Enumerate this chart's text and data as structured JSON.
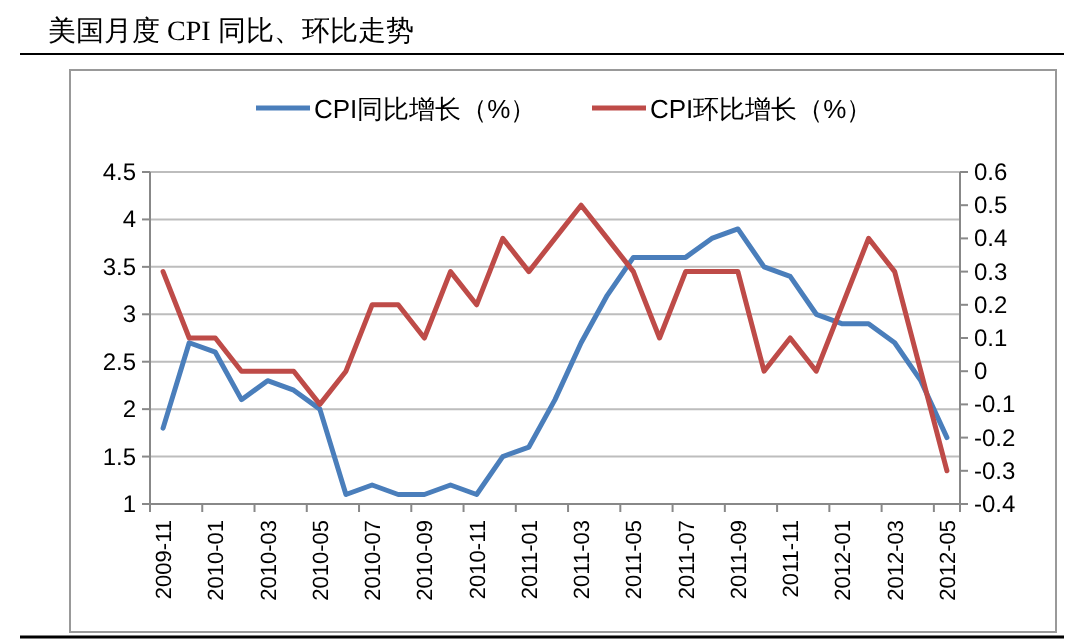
{
  "chart_data": {
    "type": "line",
    "title": "美国月度 CPI 同比、环比走势",
    "categories": [
      "2009-11",
      null,
      "2010-01",
      null,
      "2010-03",
      null,
      "2010-05",
      null,
      "2010-07",
      null,
      "2010-09",
      null,
      "2010-11",
      null,
      "2011-01",
      null,
      "2011-03",
      null,
      "2011-05",
      null,
      "2011-07",
      null,
      "2011-09",
      null,
      "2011-11",
      null,
      "2012-01",
      null,
      "2012-03",
      null,
      "2012-05"
    ],
    "series": [
      {
        "name": "CPI同比增长（%）",
        "color": "#4a7ebb",
        "values": [
          1.8,
          2.7,
          2.6,
          2.1,
          2.3,
          2.2,
          2.0,
          1.1,
          1.2,
          1.1,
          1.1,
          1.2,
          1.1,
          1.5,
          1.6,
          2.1,
          2.7,
          3.2,
          3.6,
          3.6,
          3.6,
          3.8,
          3.9,
          3.5,
          3.4,
          3.0,
          2.9,
          2.9,
          2.7,
          2.3,
          1.7
        ]
      },
      {
        "name": "CPI环比增长（%）",
        "color": "#be4b48",
        "axis": "y2",
        "values": [
          0.3,
          0.1,
          0.1,
          0.0,
          0.0,
          0.0,
          -0.1,
          0.0,
          0.2,
          0.2,
          0.1,
          0.3,
          0.2,
          0.4,
          0.3,
          0.4,
          0.5,
          0.4,
          0.3,
          0.1,
          0.3,
          0.3,
          0.3,
          0.0,
          0.1,
          0.0,
          0.2,
          0.4,
          0.3,
          0.0,
          -0.3
        ]
      }
    ],
    "ylim": [
      1,
      4.5
    ],
    "yticks": [
      1,
      1.5,
      2,
      2.5,
      3,
      3.5,
      4,
      4.5
    ],
    "y2lim": [
      -0.4,
      0.6
    ],
    "y2ticks": [
      -0.4,
      -0.3,
      -0.2,
      -0.1,
      0,
      0.1,
      0.2,
      0.3,
      0.4,
      0.5,
      0.6
    ],
    "grid": "y",
    "legend": "top"
  }
}
